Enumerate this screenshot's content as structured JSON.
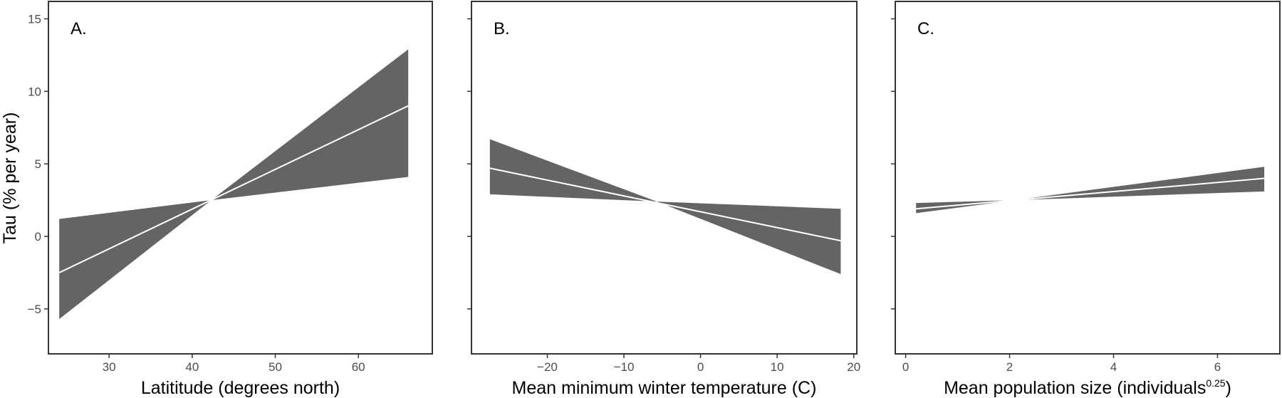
{
  "y_axis": {
    "label": "Tau (% per year)",
    "ticks": [
      -5,
      0,
      5,
      10,
      15
    ],
    "ylim": [
      -8.1,
      16.2
    ]
  },
  "colors": {
    "band": "#646464",
    "line": "#ffffff",
    "frame": "#333333"
  },
  "chart_data": [
    {
      "type": "area",
      "tag": "A.",
      "xlabel": "Latititude (degrees north)",
      "xlabel_sup": "",
      "xlim": [
        22.7,
        68.9
      ],
      "xticks": [
        30,
        40,
        50,
        60
      ],
      "yticks": [
        -5,
        0,
        5,
        10,
        15
      ],
      "ylim": [
        -8.1,
        16.2
      ],
      "grid": false,
      "fit": {
        "x": [
          24,
          66
        ],
        "y": [
          -2.5,
          9.0
        ]
      },
      "band": {
        "x": [
          24,
          42.3,
          66
        ],
        "lower": [
          -5.7,
          2.5,
          4.1
        ],
        "upper": [
          1.2,
          2.5,
          12.9
        ]
      }
    },
    {
      "type": "area",
      "tag": "B.",
      "xlabel": "Mean minimum winter temperature (C)",
      "xlabel_sup": "",
      "xlim": [
        -29.9,
        20.4
      ],
      "xticks": [
        -20,
        -10,
        0,
        10,
        20
      ],
      "xtick_labels": [
        "−20",
        "−10",
        "0",
        "10",
        "20"
      ],
      "yticks": [
        -5,
        0,
        5,
        10,
        15
      ],
      "ylim": [
        -8.1,
        16.2
      ],
      "grid": false,
      "fit": {
        "x": [
          -27.5,
          18.3
        ],
        "y": [
          4.7,
          -0.3
        ]
      },
      "band": {
        "x": [
          -27.5,
          -5.7,
          18.3
        ],
        "lower": [
          2.9,
          2.4,
          -2.6
        ],
        "upper": [
          6.7,
          2.4,
          1.9
        ]
      }
    },
    {
      "type": "area",
      "tag": "C.",
      "xlabel": "Mean population size (individuals",
      "xlabel_sup": "0.25",
      "xlabel_end": ")",
      "xlim": [
        -0.2,
        7.2
      ],
      "xticks": [
        0,
        2,
        4,
        6
      ],
      "yticks": [
        -5,
        0,
        5,
        10,
        15
      ],
      "ylim": [
        -8.1,
        16.2
      ],
      "grid": false,
      "fit": {
        "x": [
          0.2,
          6.9
        ],
        "y": [
          1.9,
          4.0
        ]
      },
      "band": {
        "x": [
          0.2,
          2.1,
          6.9
        ],
        "lower": [
          1.6,
          2.5,
          3.1
        ],
        "upper": [
          2.3,
          2.5,
          4.8
        ]
      }
    }
  ]
}
